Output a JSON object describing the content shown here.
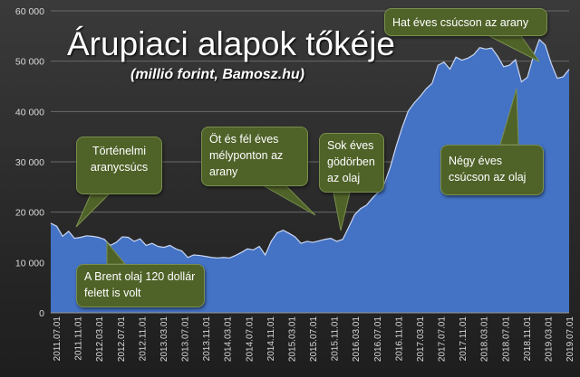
{
  "title": "Árupiaci alapok tőkéje",
  "subtitle": "(millió forint, Bamosz.hu)",
  "colors": {
    "area": "#4472c4",
    "area_edge": "#c9d7f3",
    "callout": "#4f6228",
    "text": "#d9d9d9"
  },
  "annotations": [
    "Történelmi aranycsúcs",
    "A Brent olaj 120 dollár felett is volt",
    "Öt és fél éves mélyponton az arany",
    "Sok éves gödörben az olaj",
    "Hat éves csúcson az arany",
    "Négy éves csúcson az olaj"
  ],
  "chart_data": {
    "type": "area",
    "ylim": [
      0,
      60000
    ],
    "yticks": [
      0,
      10000,
      20000,
      30000,
      40000,
      50000,
      60000
    ],
    "ytick_labels": [
      "0",
      "10 000",
      "20 000",
      "30 000",
      "40 000",
      "50 000",
      "60 000"
    ],
    "xtick_labels": [
      "2011.07.01",
      "2011.11.01",
      "2012.03.01",
      "2012.07.01",
      "2012.11.01",
      "2013.03.01",
      "2013.07.01",
      "2013.11.01",
      "2014.03.01",
      "2014.07.01",
      "2014.11.01",
      "2015.03.01",
      "2015.07.01",
      "2015.11.01",
      "2016.03.01",
      "2016.07.01",
      "2016.11.01",
      "2017.03.01",
      "2017.07.01",
      "2017.11.01",
      "2018.03.01",
      "2018.07.01",
      "2018.11.01",
      "2019.03.01",
      "2019.07.01"
    ],
    "values": [
      17800,
      17200,
      15200,
      16200,
      14800,
      15000,
      15300,
      15200,
      15000,
      14600,
      13400,
      14000,
      15100,
      15000,
      14200,
      14700,
      13400,
      13800,
      13200,
      13000,
      13400,
      12700,
      12300,
      11000,
      11500,
      11400,
      11200,
      11000,
      10900,
      11000,
      10900,
      11400,
      12000,
      12700,
      12500,
      13200,
      11500,
      14200,
      15900,
      16400,
      15800,
      15100,
      13800,
      14200,
      14000,
      14300,
      14600,
      14800,
      14200,
      14600,
      17000,
      19500,
      20700,
      21400,
      22800,
      24000,
      25700,
      29000,
      33200,
      36900,
      40100,
      41700,
      43000,
      44500,
      45600,
      49200,
      49800,
      48400,
      50800,
      50200,
      50600,
      51300,
      52700,
      52400,
      52600,
      51000,
      48900,
      49200,
      50300,
      45900,
      46800,
      51000,
      54300,
      53200,
      49500,
      46600,
      46900,
      48400
    ]
  }
}
